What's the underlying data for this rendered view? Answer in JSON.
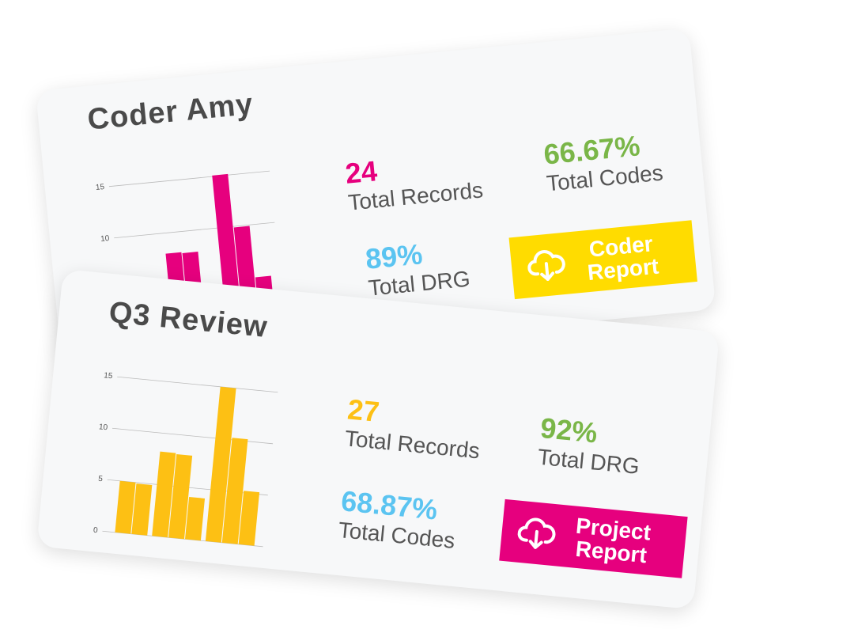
{
  "cards": [
    {
      "title": "Coder Amy",
      "chart": {
        "type": "bar",
        "values": [
          null,
          null,
          8,
          7.9,
          null,
          15.1,
          9.9,
          4.9
        ],
        "color": "#e6007e",
        "ylim": [
          0,
          16
        ],
        "yticks": [
          10,
          15
        ],
        "grid": true
      },
      "stats": [
        {
          "value": "24",
          "label": "Total Records",
          "color": "#e6007e"
        },
        {
          "value": "66.67%",
          "label": "Total Codes",
          "color": "#7ab648"
        },
        {
          "value": "89%",
          "label": "Total DRG",
          "color": "#5bc4f1"
        }
      ],
      "button": {
        "label": "Coder Report",
        "color": "#ffdc00"
      }
    },
    {
      "title": "Q3 Review",
      "chart": {
        "type": "bar",
        "values": [
          5,
          4.9,
          8.2,
          8.1,
          4.1,
          15,
          10.2,
          5.2
        ],
        "color": "#fdc014",
        "ylim": [
          0,
          16
        ],
        "yticks": [
          0,
          5,
          10,
          15
        ],
        "grid": true
      },
      "stats": [
        {
          "value": "27",
          "label": "Total Records",
          "color": "#fdc014"
        },
        {
          "value": "92%",
          "label": "Total DRG",
          "color": "#7ab648"
        },
        {
          "value": "68.87%",
          "label": "Total Codes",
          "color": "#5bc4f1"
        }
      ],
      "button": {
        "label": "Project Report",
        "color": "#e6007e"
      }
    }
  ]
}
